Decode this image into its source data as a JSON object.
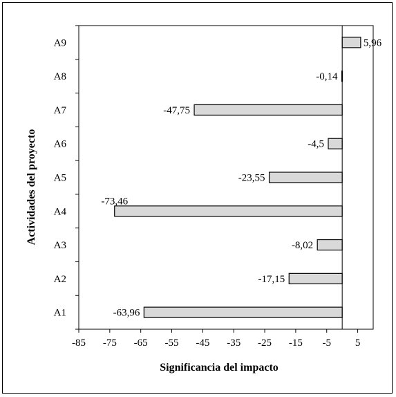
{
  "chart_data": {
    "type": "bar",
    "orientation": "horizontal",
    "categories": [
      "A1",
      "A2",
      "A3",
      "A4",
      "A5",
      "A6",
      "A7",
      "A8",
      "A9"
    ],
    "values": [
      -63.96,
      -17.15,
      -8.02,
      -73.46,
      -23.55,
      -4.5,
      -47.75,
      -0.14,
      5.96
    ],
    "data_labels": [
      "-63,96",
      "-17,15",
      "-8,02",
      "-73,46",
      "-23,55",
      "-4,5",
      "-47,75",
      "-0,14",
      "5,96"
    ],
    "xlabel": "Significancia del impacto",
    "ylabel": "Actividades del proyecto",
    "xlim": [
      -85,
      10
    ],
    "x_ticks": [
      -85,
      -75,
      -65,
      -55,
      -45,
      -35,
      -25,
      -15,
      -5,
      5
    ],
    "x_tick_labels": [
      "-85",
      "-75",
      "-65",
      "-55",
      "-45",
      "-35",
      "-25",
      "-15",
      "-5",
      "5"
    ],
    "grid": false,
    "legend": "none",
    "colors": {
      "bar_fill": "#d9d9d9",
      "bar_stroke": "#000000",
      "axis": "#000000"
    }
  }
}
